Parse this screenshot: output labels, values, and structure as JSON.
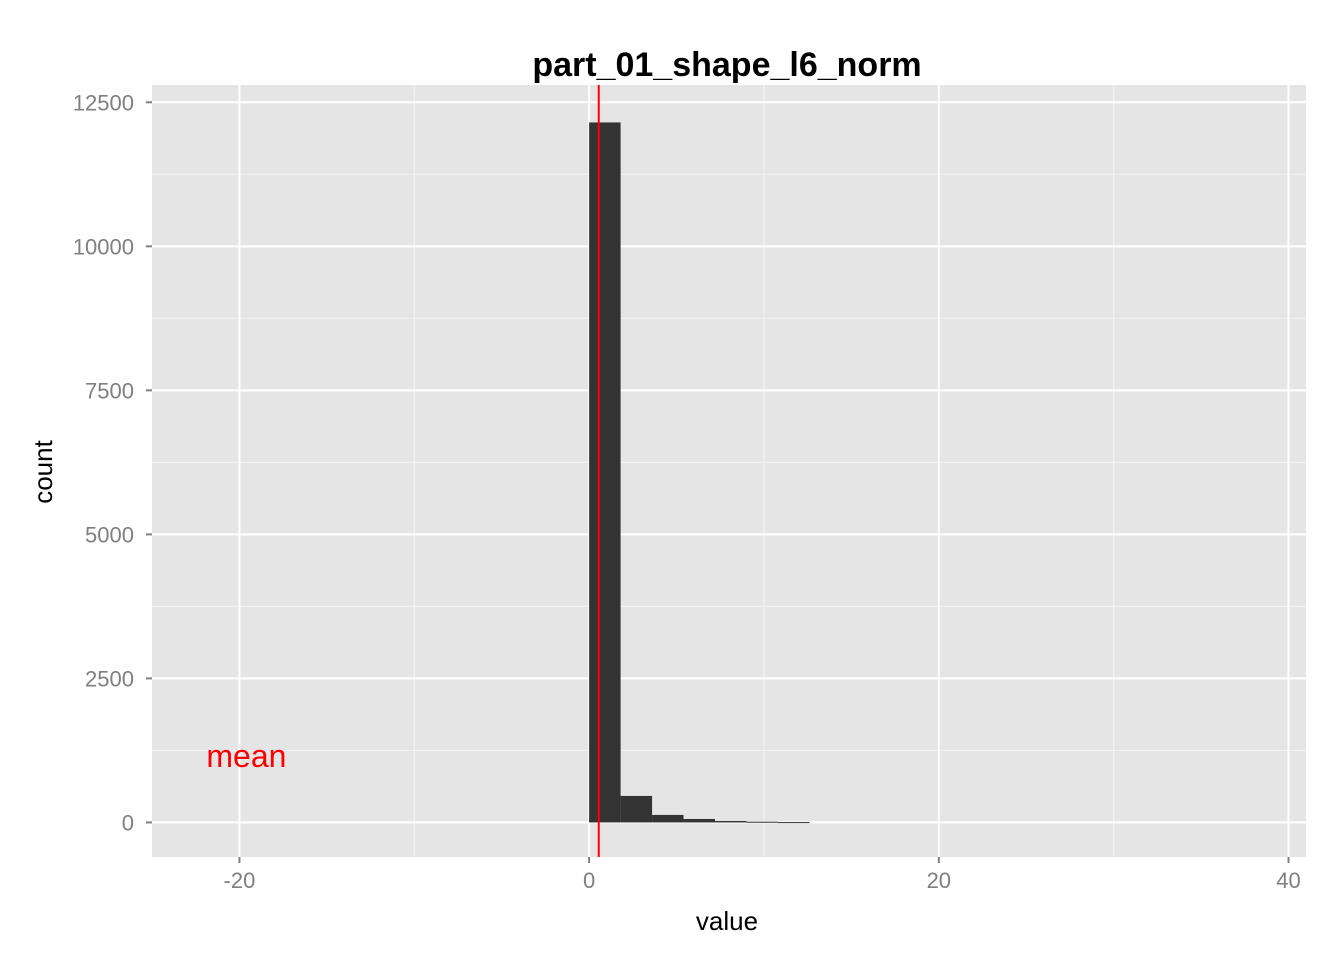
{
  "chart_data": {
    "type": "bar",
    "subtype": "histogram",
    "title": "part_01_shape_l6_norm",
    "xlabel": "value",
    "ylabel": "count",
    "xlim": [
      -25,
      41
    ],
    "ylim": [
      -600,
      12800
    ],
    "x_ticks": [
      -20,
      0,
      20,
      40
    ],
    "y_ticks": [
      0,
      2500,
      5000,
      7500,
      10000,
      12500
    ],
    "x_tick_labels": [
      "-20",
      "0",
      "20",
      "40"
    ],
    "y_tick_labels": [
      "0",
      "2500",
      "5000",
      "7500",
      "10000",
      "12500"
    ],
    "bins": [
      {
        "x0": 0.0,
        "x1": 1.8,
        "count": 12150
      },
      {
        "x0": 1.8,
        "x1": 3.6,
        "count": 460
      },
      {
        "x0": 3.6,
        "x1": 5.4,
        "count": 130
      },
      {
        "x0": 5.4,
        "x1": 7.2,
        "count": 60
      },
      {
        "x0": 7.2,
        "x1": 9.0,
        "count": 25
      },
      {
        "x0": 9.0,
        "x1": 10.8,
        "count": 12
      },
      {
        "x0": 10.8,
        "x1": 12.6,
        "count": 6
      }
    ],
    "mean_line": {
      "x": 0.55,
      "color": "#ff0000"
    },
    "annotation": {
      "text": "mean",
      "x": -19.6,
      "y": 1150,
      "color": "#ff0000"
    },
    "grid": true,
    "colors": {
      "panel": "#e5e5e5",
      "bar": "#333333",
      "grid_major": "#ffffff",
      "grid_minor": "#f2f2f2"
    }
  }
}
